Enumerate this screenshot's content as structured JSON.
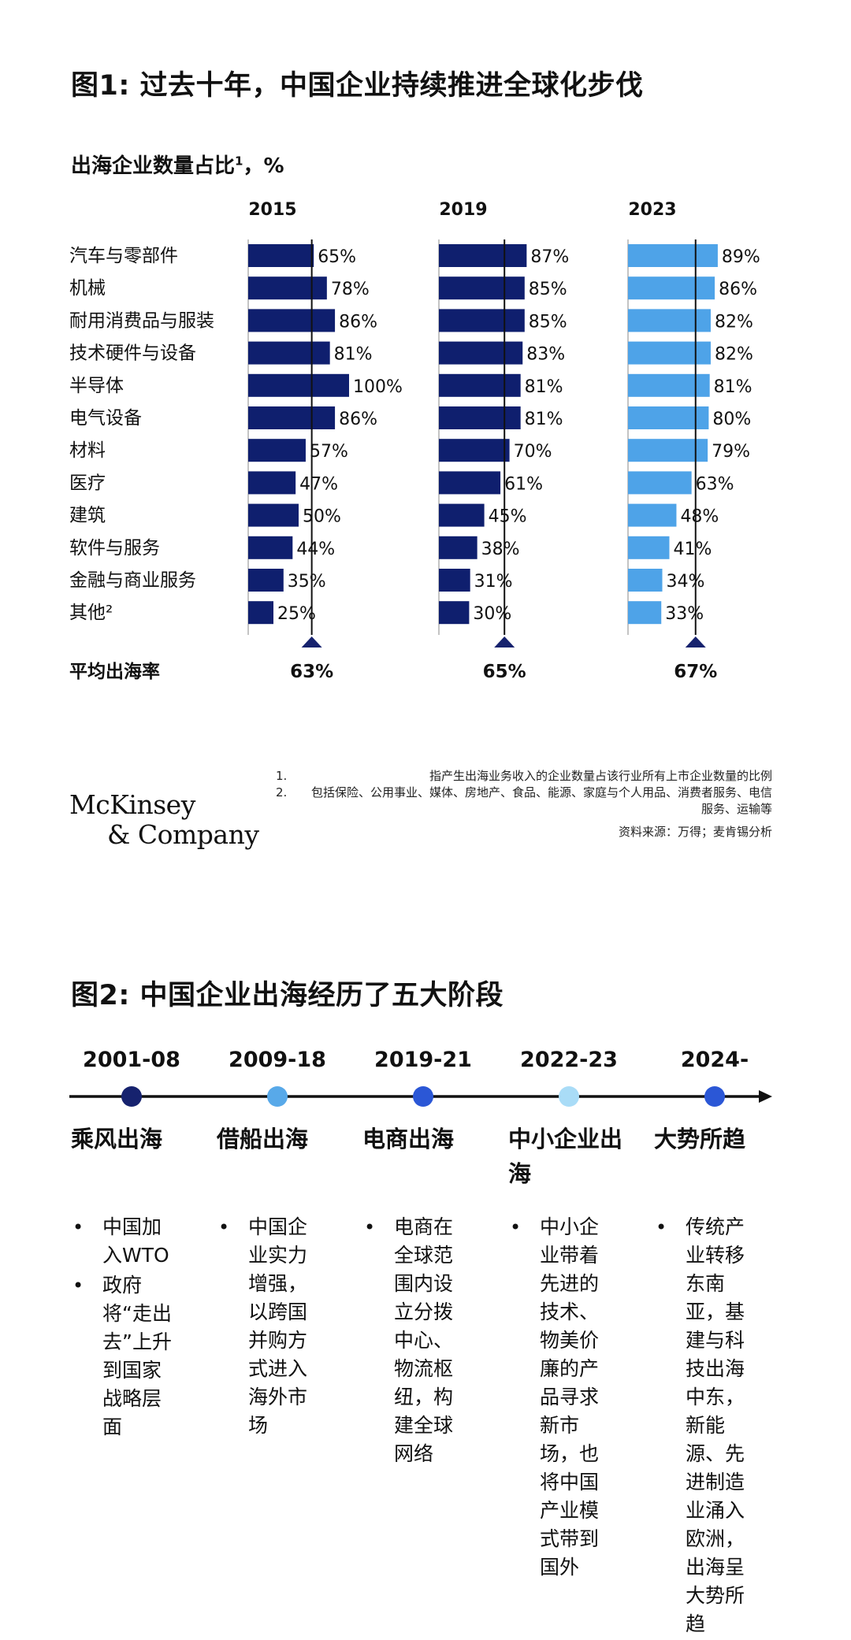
{
  "fig1": {
    "title": "图1: 过去十年，中国企业持续推进全球化步伐",
    "subtitle": "出海企业数量占比",
    "subtitle_sup": "1",
    "subtitle_unit": "，%"
  },
  "chart_data": {
    "type": "bar",
    "orientation": "horizontal",
    "value_suffix": "%",
    "categories": [
      "汽车与零部件",
      "机械",
      "耐用消费品与服装",
      "技术硬件与设备",
      "半导体",
      "电气设备",
      "材料",
      "医疗",
      "建筑",
      "软件与服务",
      "金融与商业服务",
      "其他²"
    ],
    "series": [
      {
        "name": "2015",
        "values": [
          65,
          78,
          86,
          81,
          100,
          86,
          57,
          47,
          50,
          44,
          35,
          25
        ],
        "color": "#0f1f6e",
        "average": 63,
        "average_label": "63%"
      },
      {
        "name": "2019",
        "values": [
          87,
          85,
          85,
          83,
          81,
          81,
          70,
          61,
          45,
          38,
          31,
          30
        ],
        "color": "#0f1f6e",
        "average": 65,
        "average_label": "65%"
      },
      {
        "name": "2023",
        "values": [
          89,
          86,
          82,
          82,
          81,
          80,
          79,
          63,
          48,
          41,
          34,
          33
        ],
        "color": "#4ea3e8",
        "average": 67,
        "average_label": "67%"
      }
    ],
    "average_row_label": "平均出海率",
    "xlim": [
      0,
      100
    ],
    "legend": "none"
  },
  "footnotes": [
    {
      "num": "1.",
      "text": "指产生出海业务收入的企业数量占该行业所有上市企业数量的比例"
    },
    {
      "num": "2.",
      "text": "包括保险、公用事业、媒体、房地产、食品、能源、家庭与个人用品、消费者服务、电信服务、运输等"
    }
  ],
  "source": "资料来源：万得；麦肯锡分析",
  "logo": {
    "line1": "McKinsey",
    "line2": "& Company"
  },
  "fig2": {
    "title": "图2: 中国企业出海经历了五大阶段",
    "stages": [
      {
        "year": "2001-08",
        "name": "乘风出海",
        "dot_color": "#16226e",
        "bullets": [
          "中国加入WTO",
          "政府将“走出去”上升到国家战略层面"
        ]
      },
      {
        "year": "2009-18",
        "name": "借船出海",
        "dot_color": "#58a9e9",
        "bullets": [
          "中国企业实力增强，以跨国并购方式进入海外市场"
        ]
      },
      {
        "year": "2019-21",
        "name": "电商出海",
        "dot_color": "#2b57d6",
        "bullets": [
          "电商在全球范围内设立分拨中心、物流枢纽，构建全球网络"
        ]
      },
      {
        "year": "2022-23",
        "name": "中小企业出海",
        "dot_color": "#a9dcf7",
        "bullets": [
          "中小企业带着先进的技术、物美价廉的产品寻求新市场，也将中国产业模式带到国外"
        ]
      },
      {
        "year": "2024-",
        "name": "大势所趋",
        "dot_color": "#2b57d6",
        "bullets": [
          "传统产业转移东南亚，基建与科技出海中东，新能源、先进制造业涌入欧洲，出海呈大势所趋"
        ]
      }
    ]
  }
}
